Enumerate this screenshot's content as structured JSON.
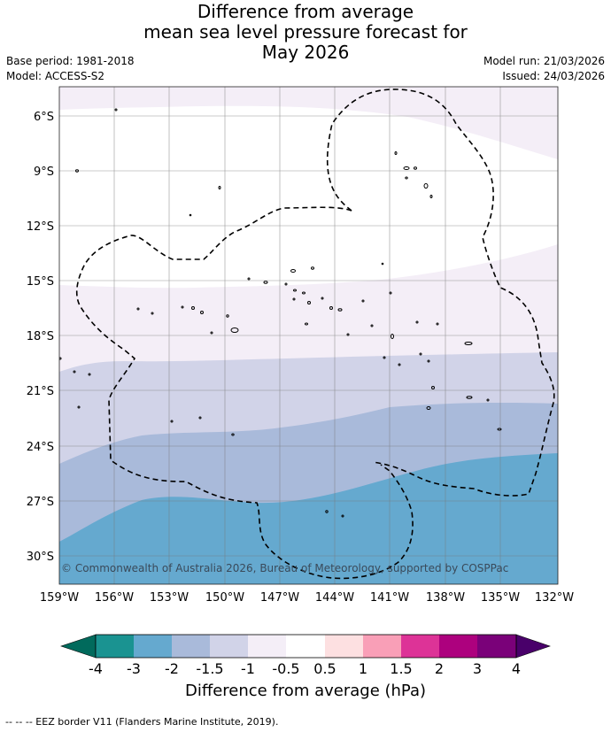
{
  "title": {
    "line1": "Difference from average",
    "line2": "mean sea level pressure forecast for",
    "line3": "May 2026"
  },
  "meta": {
    "base_period": "Base period: 1981-2018",
    "model": "Model: ACCESS-S2",
    "model_run": "Model run: 21/03/2026",
    "issued": "Issued: 24/03/2026"
  },
  "map": {
    "lat_labels": [
      "6°S",
      "9°S",
      "12°S",
      "15°S",
      "18°S",
      "21°S",
      "24°S",
      "27°S",
      "30°S"
    ],
    "lon_labels": [
      "159°W",
      "156°W",
      "153°W",
      "150°W",
      "147°W",
      "144°W",
      "141°W",
      "138°W",
      "135°W",
      "132°W"
    ],
    "copyright": "© Commonwealth of Australia 2026, Bureau of Meteorology, supported by COSPPac",
    "anomaly_bands": [
      {
        "range": "-0.5 to 0",
        "color": "#ffffff"
      },
      {
        "range": "0 to 0.5",
        "color": "#f4eef7"
      },
      {
        "range": "-1 to -0.5",
        "color": "#f4eef7"
      },
      {
        "range": "-1.5 to -1",
        "color": "#d1d3e8"
      },
      {
        "range": "-2 to -1.5",
        "color": "#a9bada"
      },
      {
        "range": "-3 to -2",
        "color": "#65a9cf"
      }
    ]
  },
  "colorbar": {
    "title": "Difference from average (hPa)",
    "tick_labels": [
      "-4",
      "-3",
      "-2",
      "-1.5",
      "-1",
      "-0.5",
      "0.5",
      "1",
      "1.5",
      "2",
      "3",
      "4"
    ],
    "colors": [
      "#1a9391",
      "#65a9cf",
      "#a9bada",
      "#d1d3e8",
      "#f4eef7",
      "#ffffff",
      "#fde0e1",
      "#f99fb7",
      "#dd3397",
      "#ad017e",
      "#7a0179"
    ],
    "extend_low_color": "#016a5c",
    "extend_high_color": "#49006a"
  },
  "footnote": "-- -- -- EEZ border V11 (Flanders Marine Institute, 2019)."
}
